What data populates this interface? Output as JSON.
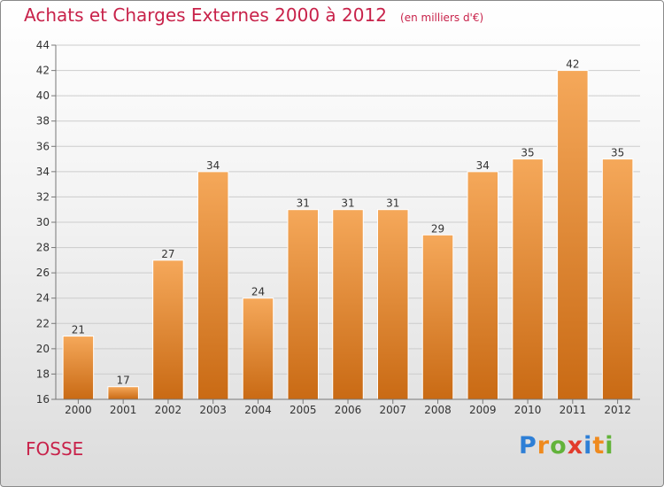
{
  "header": {
    "title": "Achats et Charges Externes 2000 à 2012",
    "subtitle": "(en milliers d'€)"
  },
  "footer": {
    "commune": "FOSSE",
    "brand_letters": [
      {
        "ch": "P",
        "color": "#2e7fd6"
      },
      {
        "ch": "r",
        "color": "#ef8a1e"
      },
      {
        "ch": "o",
        "color": "#62b33a"
      },
      {
        "ch": "x",
        "color": "#e23b2c"
      },
      {
        "ch": "i",
        "color": "#2e7fd6"
      },
      {
        "ch": "t",
        "color": "#ef8a1e"
      },
      {
        "ch": "i",
        "color": "#62b33a"
      }
    ]
  },
  "colors": {
    "title": "#c8224a",
    "bar_light": "#f5a85a",
    "bar_dark": "#c96a14",
    "grid": "#cccccc",
    "axis": "#777777"
  },
  "chart_data": {
    "type": "bar",
    "title": "Achats et Charges Externes 2000 à 2012",
    "subtitle": "(en milliers d'€)",
    "categories": [
      "2000",
      "2001",
      "2002",
      "2003",
      "2004",
      "2005",
      "2006",
      "2007",
      "2008",
      "2009",
      "2010",
      "2011",
      "2012"
    ],
    "values": [
      21,
      17,
      27,
      34,
      24,
      31,
      31,
      31,
      29,
      34,
      35,
      42,
      35
    ],
    "ylim": [
      16,
      44
    ],
    "yticks": [
      16,
      18,
      20,
      22,
      24,
      26,
      28,
      30,
      32,
      34,
      36,
      38,
      40,
      42,
      44
    ],
    "grid": true,
    "legend": "none",
    "data_labels": true
  }
}
